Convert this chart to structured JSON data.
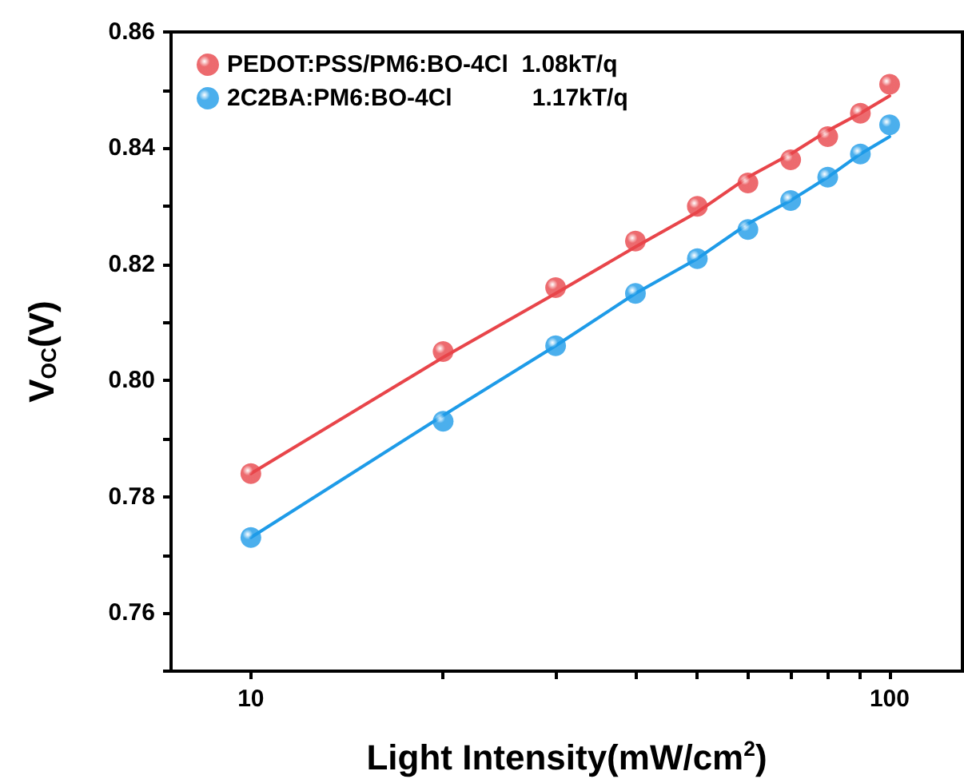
{
  "chart_data": {
    "type": "scatter",
    "xlabel": "Light Intensity(mW/cm$^{2}$)",
    "ylabel": "V$_{OC}$(V)",
    "x": [
      10,
      20,
      30,
      40,
      50,
      60,
      70,
      80,
      90,
      100
    ],
    "series": [
      {
        "name": "PEDOT:PSS/PM6:BO-4Cl  1.08kT/q",
        "color": "#e8454a",
        "marker": "circle",
        "values": [
          0.784,
          0.805,
          0.816,
          0.824,
          0.83,
          0.834,
          0.838,
          0.842,
          0.846,
          0.851
        ]
      },
      {
        "name": "2C2BA:PM6:BO-4Cl            1.17kT/q",
        "color": "#1e9be8",
        "marker": "circle",
        "values": [
          0.773,
          0.793,
          0.806,
          0.815,
          0.821,
          0.826,
          0.831,
          0.835,
          0.839,
          0.844
        ]
      },
      {
        "type": "line",
        "color": "#e8454a",
        "marker": "none",
        "line_style": "solid",
        "values": [
          0.784,
          0.804,
          0.815,
          0.823,
          0.829,
          0.835,
          0.839,
          0.843,
          0.846,
          0.849
        ]
      },
      {
        "type": "line",
        "color": "#1e9be8",
        "marker": "none",
        "line_style": "solid",
        "values": [
          0.773,
          0.794,
          0.806,
          0.815,
          0.821,
          0.827,
          0.831,
          0.835,
          0.839,
          0.842
        ]
      }
    ],
    "log": "x",
    "xlim": [
      7.5,
      130
    ],
    "ylim": [
      0.75,
      0.86
    ],
    "xticks": [
      10,
      {
        "value": 20,
        "label": null
      },
      {
        "value": 30,
        "label": null
      },
      {
        "value": 40,
        "label": null
      },
      {
        "value": 50,
        "label": null
      },
      {
        "value": 60,
        "label": null
      },
      {
        "value": 70,
        "label": null
      },
      {
        "value": 80,
        "label": null
      },
      {
        "value": 90,
        "label": null
      },
      100
    ],
    "yticks": [
      {
        "value": 0.75,
        "label": null
      },
      0.76,
      {
        "value": 0.77,
        "label": null
      },
      0.78,
      {
        "value": 0.79,
        "label": null
      },
      {
        "value": 0.8,
        "label": "0.80"
      },
      {
        "value": 0.81,
        "label": null
      },
      0.82,
      {
        "value": 0.83,
        "label": null
      },
      0.84,
      {
        "value": 0.85,
        "label": null
      },
      0.86
    ],
    "grid": false,
    "legend": "top left"
  }
}
